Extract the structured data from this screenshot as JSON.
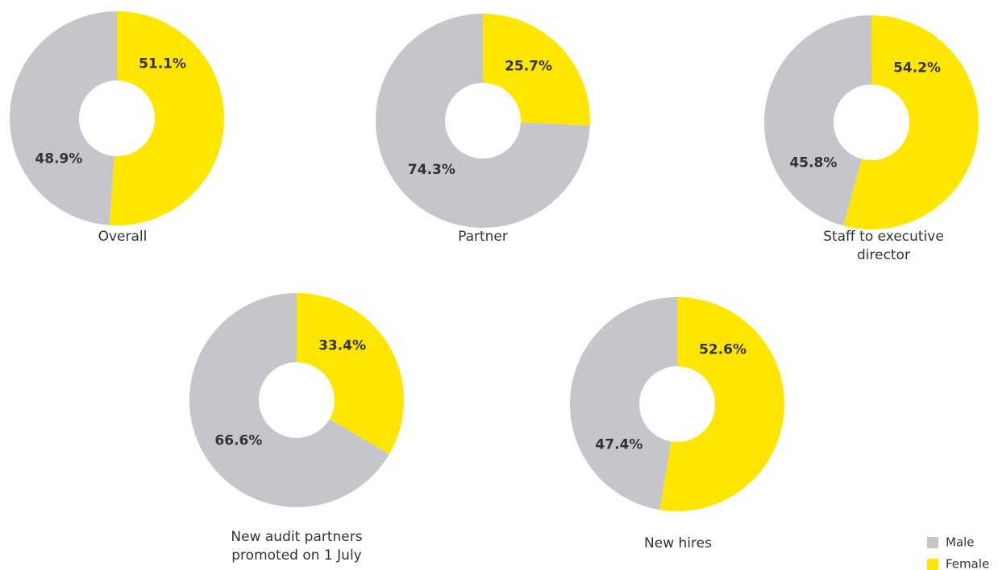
{
  "legend": {
    "items": [
      {
        "name": "Male",
        "color": "#c5c5cc"
      },
      {
        "name": "Female",
        "color": "#ffe600"
      }
    ]
  },
  "chart_data": [
    {
      "type": "pie",
      "title": "Overall",
      "values": [
        51.1,
        48.9
      ],
      "value_labels": [
        "51.1%",
        "48.9%"
      ]
    },
    {
      "type": "pie",
      "title": "Partner",
      "values": [
        25.7,
        74.3
      ],
      "value_labels": [
        "25.7%",
        "74.3%"
      ]
    },
    {
      "type": "pie",
      "title": "Staff to executive director",
      "values": [
        54.2,
        45.8
      ],
      "value_labels": [
        "54.2%",
        "45.8%"
      ]
    },
    {
      "type": "pie",
      "title": "New audit partners promoted on 1 July",
      "values": [
        33.4,
        66.6
      ],
      "value_labels": [
        "33.4%",
        "66.6%"
      ]
    },
    {
      "type": "pie",
      "title": "New hires",
      "values": [
        52.6,
        47.4
      ],
      "value_labels": [
        "52.6%",
        "47.4%"
      ]
    }
  ]
}
